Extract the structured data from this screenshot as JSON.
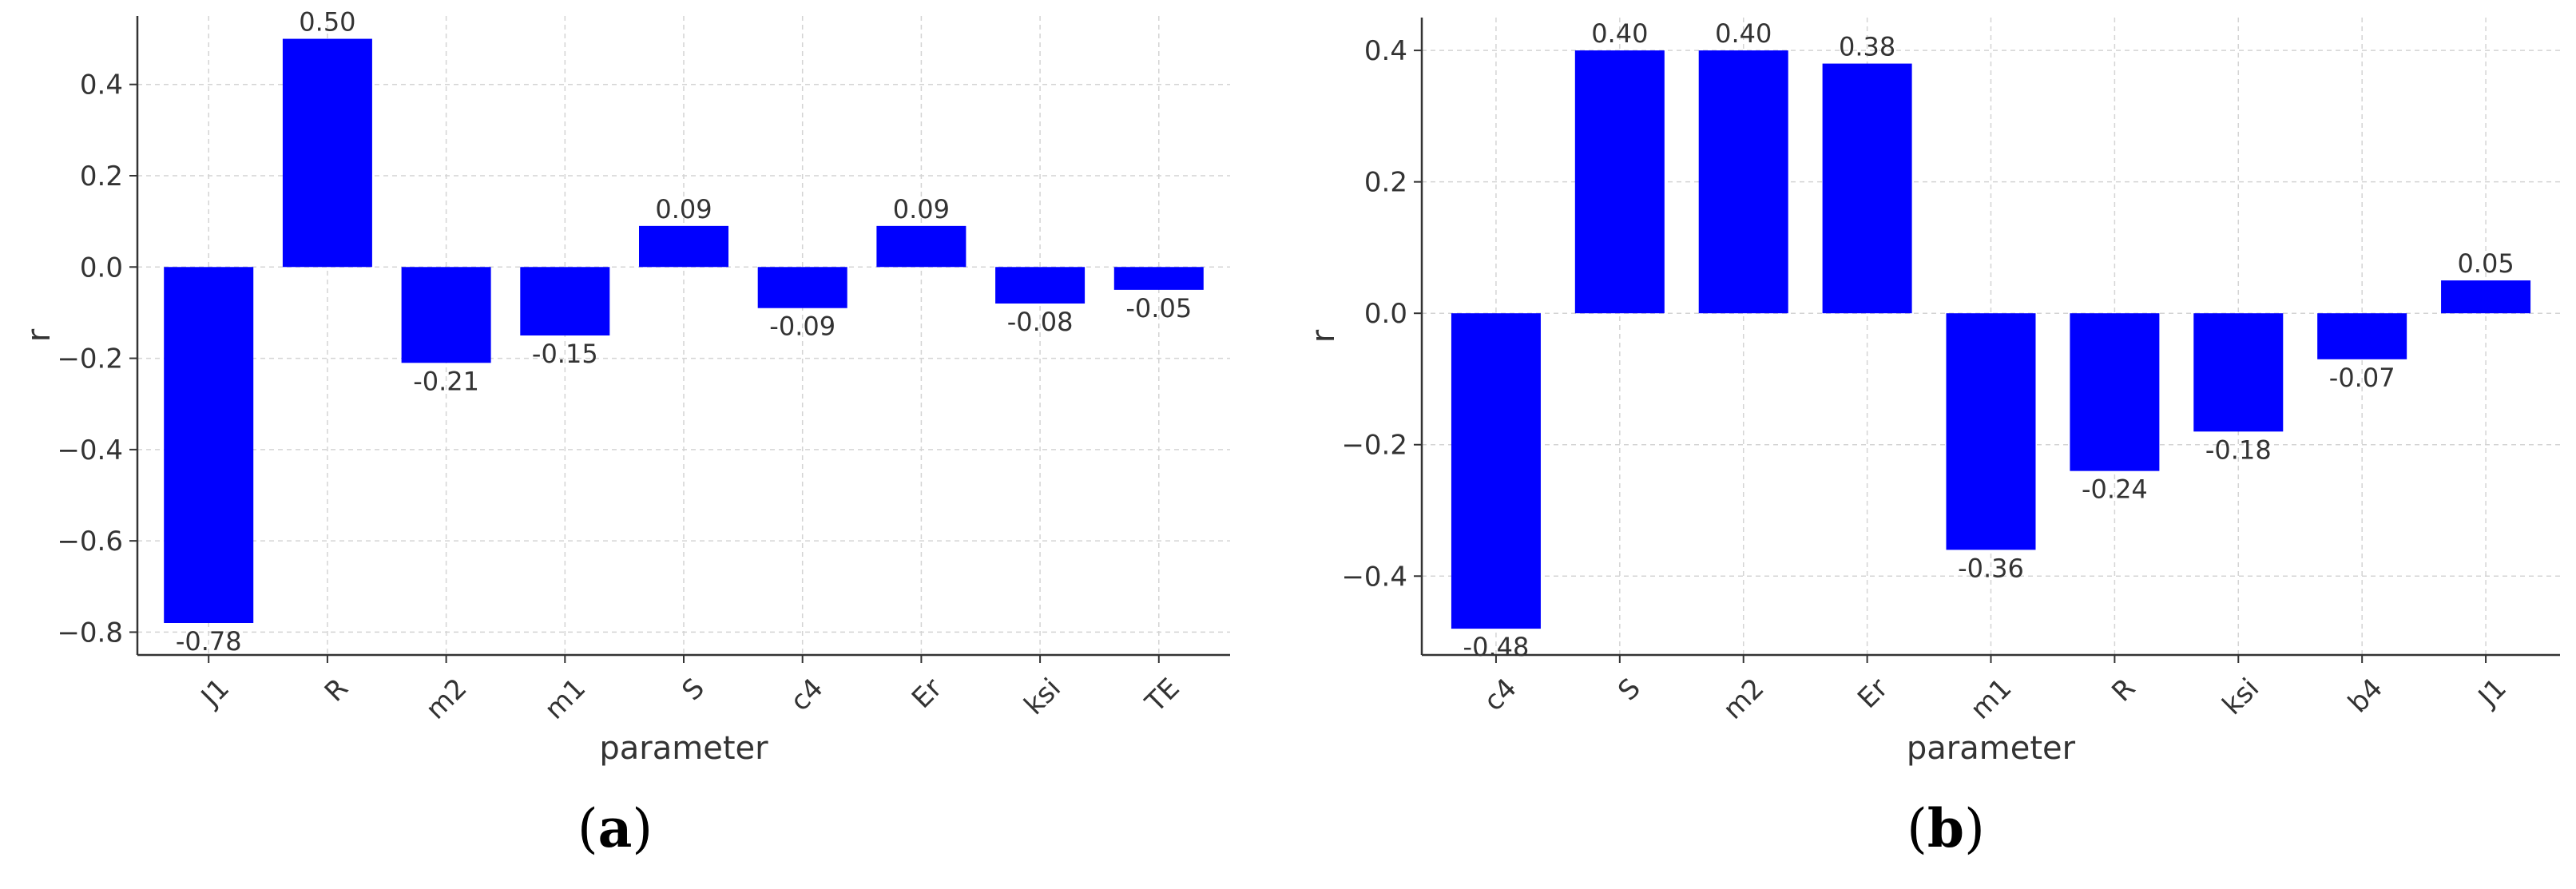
{
  "chart_data": [
    {
      "type": "bar",
      "caption_letter": "a",
      "categories": [
        "J1",
        "R",
        "m2",
        "m1",
        "S",
        "c4",
        "Er",
        "ksi",
        "TE"
      ],
      "values": [
        -0.78,
        0.5,
        -0.21,
        -0.15,
        0.09,
        -0.09,
        0.09,
        -0.08,
        -0.05
      ],
      "value_labels": [
        "-0.78",
        "0.50",
        "-0.21",
        "-0.15",
        "0.09",
        "-0.09",
        "0.09",
        "-0.08",
        "-0.05"
      ],
      "xlabel": "parameter",
      "ylabel": "r",
      "ylim": [
        -0.85,
        0.55
      ],
      "yticks": [
        -0.8,
        -0.6,
        -0.4,
        -0.2,
        0.0,
        0.2,
        0.4
      ],
      "ytick_labels": [
        "−0.8",
        "−0.6",
        "−0.4",
        "−0.2",
        "0.0",
        "0.2",
        "0.4"
      ],
      "grid": true,
      "bar_color": "#0000ff"
    },
    {
      "type": "bar",
      "caption_letter": "b",
      "categories": [
        "c4",
        "S",
        "m2",
        "Er",
        "m1",
        "R",
        "ksi",
        "b4",
        "J1"
      ],
      "values": [
        -0.48,
        0.4,
        0.4,
        0.38,
        -0.36,
        -0.24,
        -0.18,
        -0.07,
        0.05
      ],
      "value_labels": [
        "-0.48",
        "0.40",
        "0.40",
        "0.38",
        "-0.36",
        "-0.24",
        "-0.18",
        "-0.07",
        "0.05"
      ],
      "xlabel": "parameter",
      "ylabel": "r",
      "ylim": [
        -0.52,
        0.45
      ],
      "yticks": [
        -0.4,
        -0.2,
        0.0,
        0.2,
        0.4
      ],
      "ytick_labels": [
        "−0.4",
        "−0.2",
        "0.0",
        "0.2",
        "0.4"
      ],
      "grid": true,
      "bar_color": "#0000ff"
    }
  ]
}
